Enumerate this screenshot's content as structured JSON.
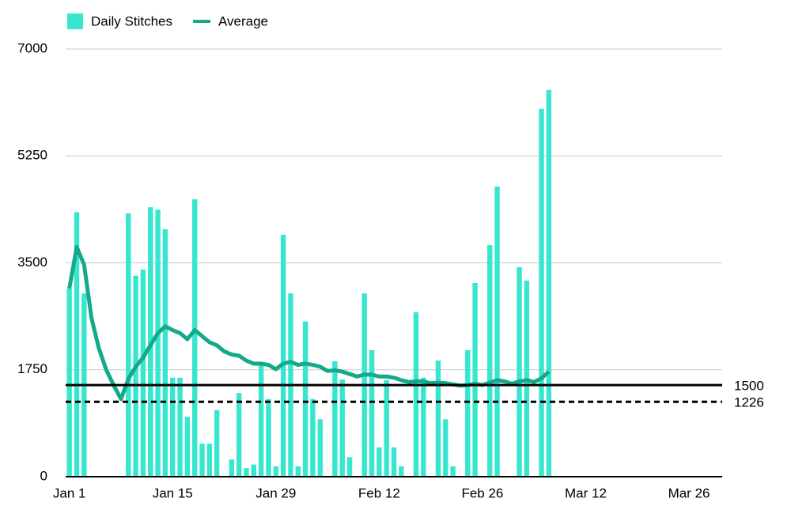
{
  "chart_data": {
    "type": "bar",
    "x": [
      0,
      1,
      2,
      3,
      4,
      5,
      6,
      7,
      8,
      9,
      10,
      11,
      12,
      13,
      14,
      15,
      16,
      17,
      18,
      19,
      20,
      21,
      22,
      23,
      24,
      25,
      26,
      27,
      28,
      29,
      30,
      31,
      32,
      33,
      34,
      35,
      36,
      37,
      38,
      39,
      40,
      41,
      42,
      43,
      44,
      45,
      46,
      47,
      48,
      49,
      50,
      51,
      52,
      53,
      54,
      55,
      56,
      57,
      58,
      59,
      60,
      61,
      62,
      63,
      64,
      65
    ],
    "series": [
      {
        "name": "Daily Stitches",
        "type": "bar",
        "color": "#37e6cf",
        "values": [
          3080,
          4330,
          3000,
          0,
          0,
          0,
          0,
          0,
          4310,
          3290,
          3390,
          4410,
          4370,
          4050,
          1620,
          1620,
          980,
          4540,
          540,
          540,
          1090,
          0,
          280,
          1370,
          140,
          200,
          1820,
          1270,
          170,
          3960,
          3000,
          170,
          2540,
          1270,
          940,
          0,
          1890,
          1590,
          320,
          0,
          3000,
          2070,
          480,
          1580,
          480,
          170,
          0,
          2690,
          1620,
          0,
          1900,
          940,
          170,
          0,
          2070,
          3170,
          0,
          3790,
          4750,
          0,
          0,
          3430,
          3210,
          0,
          6020,
          6330
        ]
      },
      {
        "name": "Average",
        "type": "line",
        "color": "#13a98b",
        "values": [
          3080,
          3760,
          3470,
          2600,
          2100,
          1750,
          1500,
          1270,
          1600,
          1800,
          1950,
          2150,
          2350,
          2460,
          2400,
          2350,
          2250,
          2400,
          2300,
          2200,
          2150,
          2050,
          2000,
          1980,
          1900,
          1850,
          1850,
          1830,
          1760,
          1850,
          1880,
          1830,
          1850,
          1830,
          1800,
          1730,
          1740,
          1720,
          1680,
          1640,
          1670,
          1670,
          1640,
          1640,
          1620,
          1580,
          1550,
          1560,
          1560,
          1530,
          1540,
          1530,
          1510,
          1490,
          1500,
          1520,
          1500,
          1540,
          1580,
          1560,
          1520,
          1560,
          1580,
          1550,
          1610,
          1720
        ]
      }
    ],
    "reference_lines": [
      {
        "value": 1500,
        "dashed": false
      },
      {
        "value": 1226,
        "dashed": true
      }
    ],
    "xlim": [
      -0.5,
      88.5
    ],
    "xticks": [
      {
        "value": 0,
        "label": "Jan 1"
      },
      {
        "value": 14,
        "label": "Jan 15"
      },
      {
        "value": 28,
        "label": "Jan 29"
      },
      {
        "value": 42,
        "label": "Feb 12"
      },
      {
        "value": 56,
        "label": "Feb 26"
      },
      {
        "value": 70,
        "label": "Mar 12"
      },
      {
        "value": 84,
        "label": "Mar 26"
      }
    ],
    "ylim": [
      0,
      7000
    ],
    "yticks": [
      0,
      1750,
      3500,
      5250,
      7000
    ],
    "grid": true
  }
}
